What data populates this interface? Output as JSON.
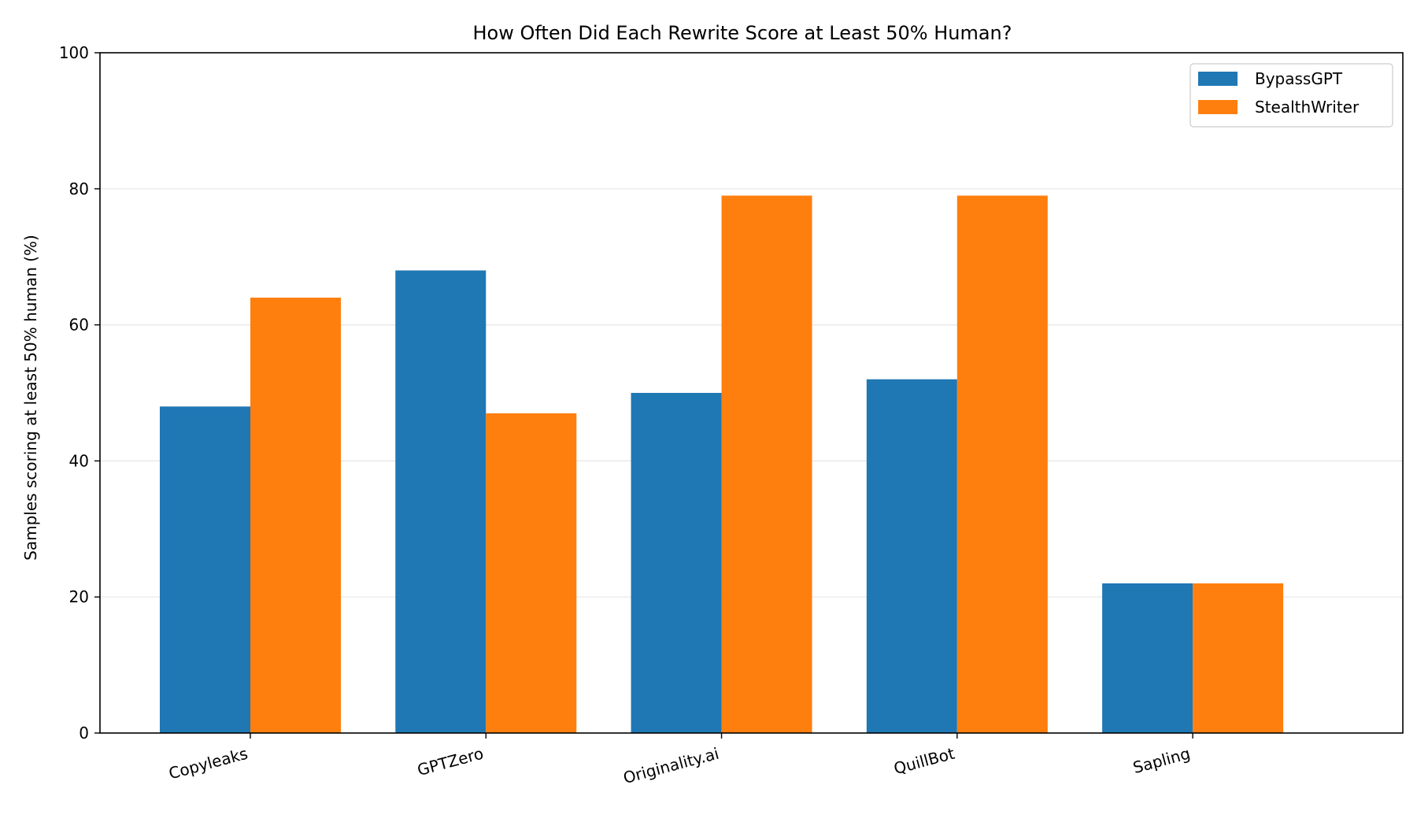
{
  "chart_data": {
    "type": "bar",
    "title": "How Often Did Each Rewrite Score at Least 50% Human?",
    "xlabel": "",
    "ylabel": "Samples scoring at least 50% human (%)",
    "categories": [
      "Copyleaks",
      "GPTZero",
      "Originality.ai",
      "QuillBot",
      "Sapling"
    ],
    "series": [
      {
        "name": "BypassGPT",
        "color": "#1f77b4",
        "values": [
          48,
          68,
          50,
          52,
          22
        ]
      },
      {
        "name": "StealthWriter",
        "color": "#ff7f0e",
        "values": [
          64,
          47,
          79,
          79,
          22
        ]
      }
    ],
    "ylim": [
      0,
      100
    ],
    "yticks": [
      0,
      20,
      40,
      60,
      80,
      100
    ],
    "grid": "horizontal",
    "legend_position": "top-right"
  }
}
